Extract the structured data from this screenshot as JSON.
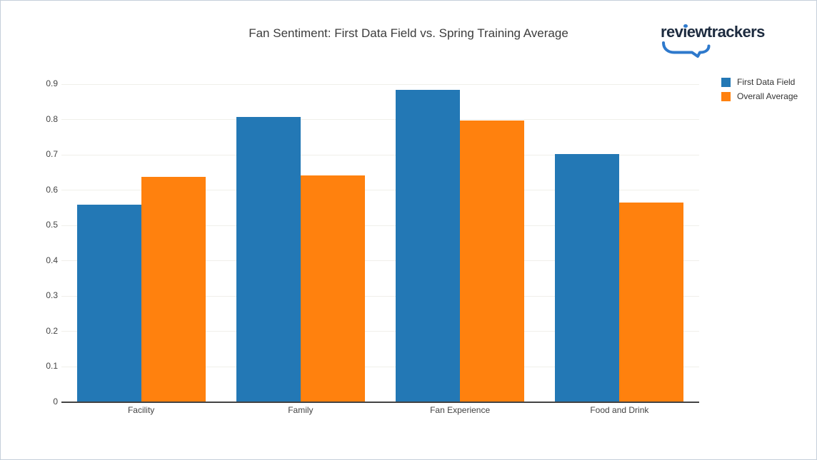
{
  "logo": {
    "text": "reviewtrackers",
    "accent_color": "#2e79cc",
    "text_color": "#1d2b3f"
  },
  "chart_data": {
    "type": "bar",
    "title": "Fan Sentiment: First Data Field vs. Spring Training Average",
    "categories": [
      "Facility",
      "Family",
      "Fan Experience",
      "Food and Drink"
    ],
    "series": [
      {
        "name": "First Data Field",
        "color": "#2378b5",
        "values": [
          0.56,
          0.807,
          0.883,
          0.702
        ]
      },
      {
        "name": "Overall Average",
        "color": "#ff810e",
        "values": [
          0.638,
          0.641,
          0.798,
          0.565
        ]
      }
    ],
    "xlabel": "",
    "ylabel": "",
    "ylim": [
      0,
      0.9
    ],
    "yticks": [
      {
        "v": 0.0,
        "label": "0"
      },
      {
        "v": 0.1,
        "label": "0.1"
      },
      {
        "v": 0.2,
        "label": "0.2"
      },
      {
        "v": 0.3,
        "label": "0.3"
      },
      {
        "v": 0.4,
        "label": "0.4"
      },
      {
        "v": 0.5,
        "label": "0.5"
      },
      {
        "v": 0.6,
        "label": "0.6"
      },
      {
        "v": 0.7,
        "label": "0.7"
      },
      {
        "v": 0.8,
        "label": "0.8"
      },
      {
        "v": 0.9,
        "label": "0.9"
      }
    ],
    "grid": "horizontal",
    "legend_position": "top-right"
  }
}
